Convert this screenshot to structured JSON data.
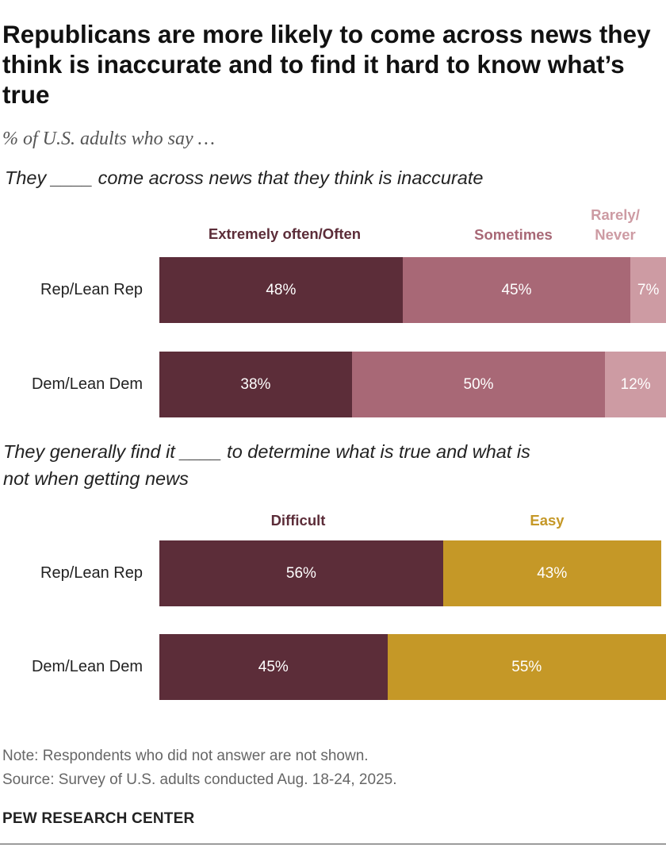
{
  "title": "Republicans are more likely to come across news they think is inaccurate and to find it hard to know what’s true",
  "subtitle": "% of U.S. adults who say …",
  "chart_data": [
    {
      "type": "bar",
      "orientation": "horizontal",
      "stacked": true,
      "title": "They ____ come across news that they think is inaccurate",
      "categories": [
        "Rep/Lean Rep",
        "Dem/Lean Dem"
      ],
      "xlim": [
        0,
        100
      ],
      "legend_placement": "top",
      "series": [
        {
          "name": "Extremely often/Often",
          "values": [
            48,
            38
          ],
          "labels": [
            "48%",
            "38%"
          ],
          "color": "#5c2d39"
        },
        {
          "name": "Sometimes",
          "values": [
            45,
            50
          ],
          "labels": [
            "45%",
            "50%"
          ],
          "color": "#a86876"
        },
        {
          "name": "Rarely/ Never",
          "values": [
            7,
            12
          ],
          "labels": [
            "7%",
            "12%"
          ],
          "color": "#cd9ba3"
        }
      ]
    },
    {
      "type": "bar",
      "orientation": "horizontal",
      "stacked": true,
      "title": "They generally find it ____ to determine what is true and what is not when getting news",
      "categories": [
        "Rep/Lean Rep",
        "Dem/Lean Dem"
      ],
      "xlim": [
        0,
        100
      ],
      "legend_placement": "top",
      "series": [
        {
          "name": "Difficult",
          "values": [
            56,
            45
          ],
          "labels": [
            "56%",
            "45%"
          ],
          "color": "#5c2d39"
        },
        {
          "name": "Easy",
          "values": [
            43,
            55
          ],
          "labels": [
            "43%",
            "55%"
          ],
          "color": "#c59827"
        }
      ]
    }
  ],
  "legend_colors": [
    "#5c2d39",
    "#a86876",
    "#cd9ba3",
    "#5c2d39",
    "#c59827"
  ],
  "note": "Note: Respondents who did not answer are not shown.",
  "source": "Source: Survey of U.S. adults conducted Aug. 18-24, 2025.",
  "brand": "PEW RESEARCH CENTER"
}
